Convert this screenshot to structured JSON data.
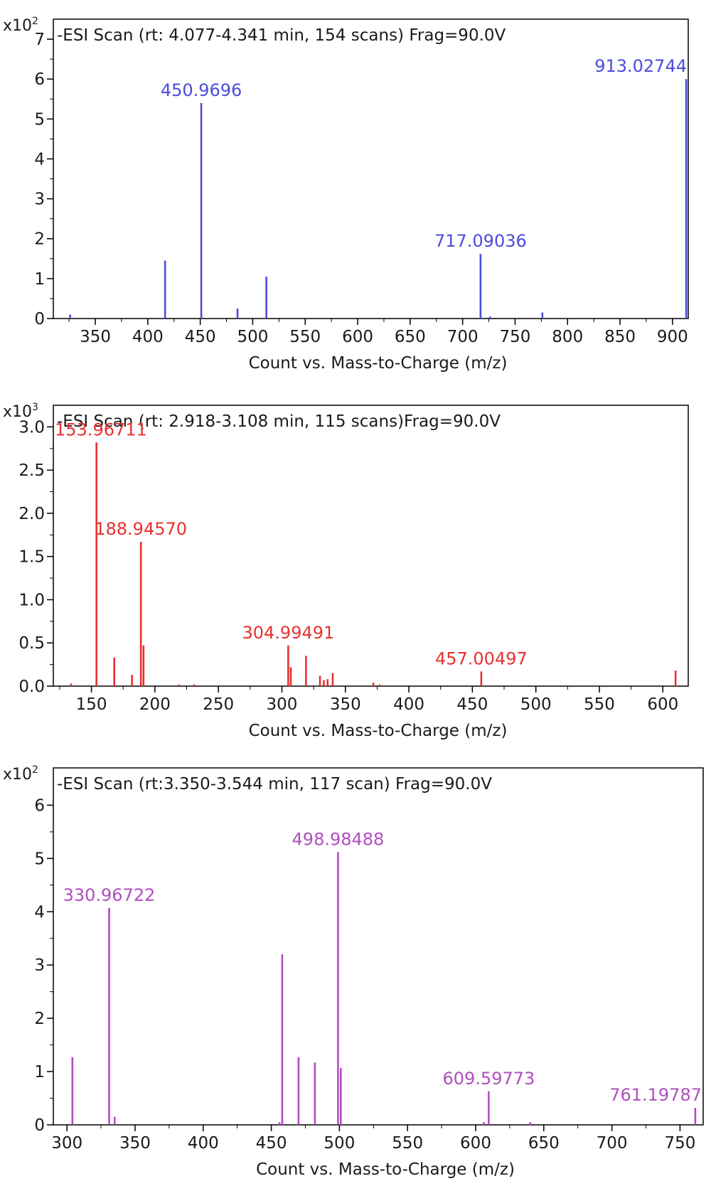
{
  "chart_data": [
    {
      "type": "bar",
      "title": "-ESI Scan (rt: 4.077-4.341 min, 154 scans) Frag=90.0V",
      "xlabel": "Count vs. Mass-to-Charge (m/z)",
      "y_multiplier": {
        "base": "x10",
        "exponent": "2"
      },
      "xlim": [
        310,
        915
      ],
      "ylim": [
        0,
        7.5
      ],
      "x_ticks": [
        350,
        400,
        450,
        500,
        550,
        600,
        650,
        700,
        750,
        800,
        850,
        900
      ],
      "y_ticks": [
        0,
        1,
        2,
        3,
        4,
        5,
        6,
        7
      ],
      "color": "#4b4bdc",
      "series": [
        {
          "x": [
            326,
            416.5,
            450.97,
            485.5,
            513,
            717.09,
            726,
            776,
            913.03
          ],
          "values": [
            0.1,
            1.45,
            5.4,
            0.25,
            1.05,
            1.62,
            0.05,
            0.15,
            6.0
          ]
        }
      ],
      "annotations": [
        {
          "x": 450.97,
          "y": 5.4,
          "text": "450.9696"
        },
        {
          "x": 717.09,
          "y": 1.62,
          "text": "717.09036"
        },
        {
          "x": 913.03,
          "y": 6.0,
          "text": "913.02744"
        }
      ],
      "grid": false
    },
    {
      "type": "bar",
      "title": "-ESI Scan (rt: 2.918-3.108 min, 115 scans)Frag=90.0V",
      "xlabel": "Count vs. Mass-to-Charge (m/z)",
      "y_multiplier": {
        "base": "x10",
        "exponent": "3"
      },
      "xlim": [
        120,
        620
      ],
      "ylim": [
        0,
        3.25
      ],
      "x_ticks": [
        150,
        200,
        250,
        300,
        350,
        400,
        450,
        500,
        550,
        600
      ],
      "y_ticks": [
        0.0,
        0.5,
        1.0,
        1.5,
        2.0,
        2.5,
        3.0
      ],
      "y_tick_labels": [
        "0.0",
        "0.5",
        "1.0",
        "1.5",
        "2.0",
        "2.5",
        "3.0"
      ],
      "color": "#e8312f",
      "series": [
        {
          "x": [
            134,
            153.97,
            168,
            182,
            188.95,
            191,
            219,
            231,
            304.99,
            307,
            319,
            330,
            333,
            336,
            340,
            372,
            377,
            457.0,
            610
          ],
          "values": [
            0.03,
            2.82,
            0.33,
            0.13,
            1.67,
            0.47,
            0.02,
            0.02,
            0.47,
            0.22,
            0.35,
            0.12,
            0.07,
            0.08,
            0.15,
            0.04,
            0.02,
            0.17,
            0.18
          ]
        }
      ],
      "annotations": [
        {
          "x": 153.97,
          "y": 2.82,
          "text": "153.96711"
        },
        {
          "x": 188.95,
          "y": 1.67,
          "text": "188.94570"
        },
        {
          "x": 304.99,
          "y": 0.47,
          "text": "304.99491"
        },
        {
          "x": 457.0,
          "y": 0.17,
          "text": "457.00497"
        }
      ],
      "grid": false
    },
    {
      "type": "bar",
      "title": "-ESI Scan (rt:3.350-3.544 min, 117 scan) Frag=90.0V",
      "xlabel": "Count vs. Mass-to-Charge (m/z)",
      "y_multiplier": {
        "base": "x10",
        "exponent": "2"
      },
      "xlim": [
        290,
        767
      ],
      "ylim": [
        0,
        6.7
      ],
      "x_ticks": [
        300,
        350,
        400,
        450,
        500,
        550,
        600,
        650,
        700,
        750
      ],
      "y_ticks": [
        0,
        1,
        2,
        3,
        4,
        5,
        6
      ],
      "color": "#b04ec0",
      "series": [
        {
          "x": [
            304,
            330.97,
            335,
            456,
            458,
            470,
            482,
            498.98,
            501,
            606,
            609.6,
            640,
            761.2
          ],
          "values": [
            1.27,
            4.07,
            0.15,
            0.05,
            3.2,
            1.27,
            1.17,
            5.12,
            1.07,
            0.05,
            0.63,
            0.05,
            0.32
          ]
        }
      ],
      "annotations": [
        {
          "x": 330.97,
          "y": 4.07,
          "text": "330.96722"
        },
        {
          "x": 498.98,
          "y": 5.12,
          "text": "498.98488"
        },
        {
          "x": 609.6,
          "y": 0.63,
          "text": "609.59773"
        },
        {
          "x": 761.2,
          "y": 0.32,
          "text": "761.19787"
        }
      ],
      "grid": false
    }
  ]
}
